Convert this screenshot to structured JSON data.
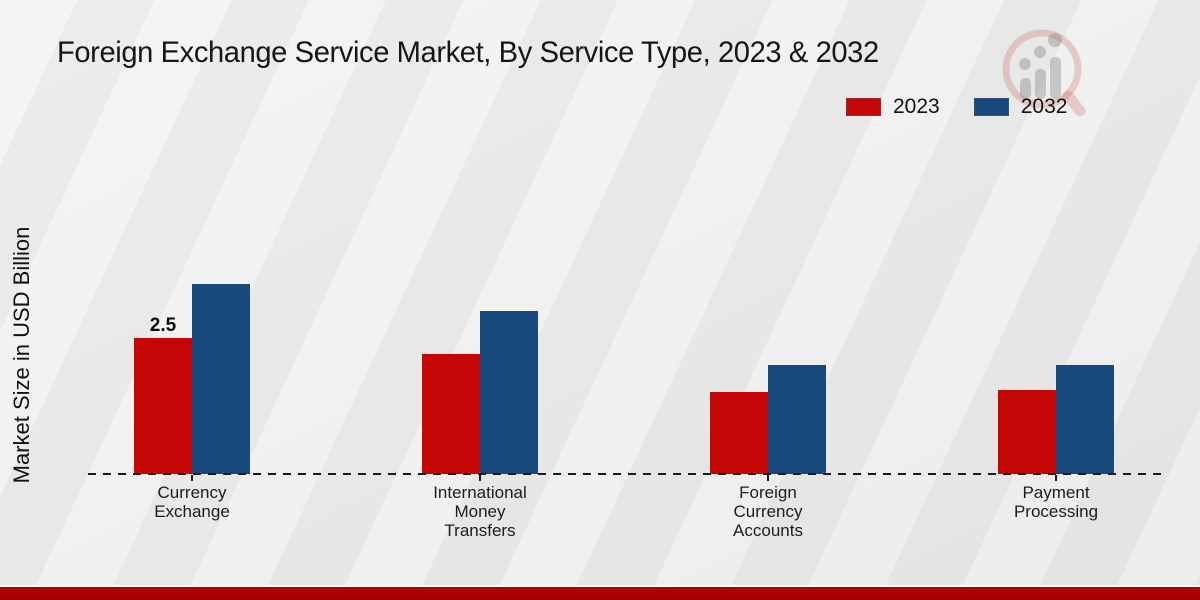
{
  "header": {
    "title": "Foreign Exchange Service Market, By Service Type, 2023 & 2032",
    "title_color": "#161616"
  },
  "legend": {
    "items": [
      {
        "label": "2023",
        "color": "#c40606"
      },
      {
        "label": "2032",
        "color": "#17497d"
      }
    ],
    "position": "top-right"
  },
  "y_axis": {
    "label": "Market Size in USD Billion",
    "ticks_visible": false
  },
  "watermark": {
    "name": "market-research-chart-logo"
  },
  "footer": {
    "band_color": "#b30202",
    "divider_color": "#fbfbfb"
  },
  "page_background": "#eaeaea",
  "chart_data": {
    "type": "bar",
    "title": "Foreign Exchange Service Market, By Service Type, 2023 & 2032",
    "ylabel": "Market Size in USD Billion",
    "categories": [
      "Currency\nExchange",
      "International\nMoney\nTransfers",
      "Foreign\nCurrency\nAccounts",
      "Payment\nProcessing"
    ],
    "series": [
      {
        "name": "2023",
        "color": "#c40606",
        "values": [
          2.5,
          2.2,
          1.5,
          1.55
        ]
      },
      {
        "name": "2032",
        "color": "#17497d",
        "values": [
          3.5,
          3.0,
          2.0,
          2.0
        ]
      }
    ],
    "data_labels": [
      {
        "series": "2023",
        "category_index": 0,
        "text": "2.5"
      }
    ],
    "ylim": [
      0,
      4
    ],
    "grid": false,
    "baseline_style": "dashed",
    "legend_position": "top-right"
  }
}
